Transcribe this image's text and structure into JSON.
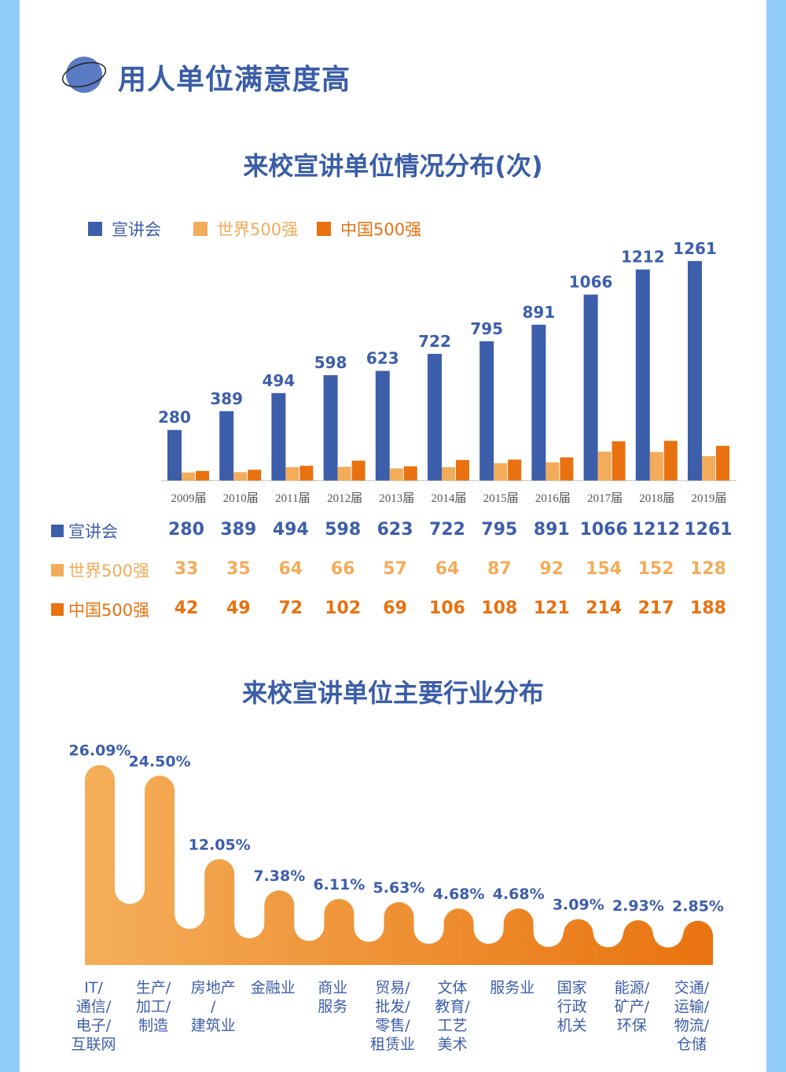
{
  "header": {
    "title": "用人单位满意度高",
    "icon": "planet-icon"
  },
  "colors": {
    "blue": "#3d5eab",
    "light_orange": "#f3ac5a",
    "dark_orange": "#e9710f",
    "title": "#3a5da8"
  },
  "chart_data": [
    {
      "type": "bar",
      "title": "来校宣讲单位情况分布(次)",
      "categories": [
        "2009届",
        "2010届",
        "2011届",
        "2012届",
        "2013届",
        "2014届",
        "2015届",
        "2016届",
        "2017届",
        "2018届",
        "2019届"
      ],
      "series": [
        {
          "name": "宣讲会",
          "values": [
            280,
            389,
            494,
            598,
            623,
            722,
            795,
            891,
            1066,
            1212,
            1261
          ]
        },
        {
          "name": "世界500强",
          "values": [
            33,
            35,
            64,
            66,
            57,
            64,
            87,
            92,
            154,
            152,
            128
          ]
        },
        {
          "name": "中国500强",
          "values": [
            42,
            49,
            72,
            102,
            69,
            106,
            108,
            121,
            214,
            217,
            188
          ]
        }
      ],
      "legend": "top-left",
      "grid": false
    },
    {
      "type": "bar",
      "title": "来校宣讲单位主要行业分布",
      "categories": [
        [
          "IT/",
          "通信/",
          "电子/",
          "互联网"
        ],
        [
          "生产/",
          "加工/",
          "制造"
        ],
        [
          "房地产",
          "/",
          "建筑业"
        ],
        [
          "金融业"
        ],
        [
          "商业",
          "服务"
        ],
        [
          "贸易/",
          "批发/",
          "零售/",
          "租赁业"
        ],
        [
          "文体",
          "教育/",
          "工艺",
          "美术"
        ],
        [
          "服务业"
        ],
        [
          "国家",
          "行政",
          "机关"
        ],
        [
          "能源/",
          "矿产/",
          "环保"
        ],
        [
          "交通/",
          "运输/",
          "物流/",
          "仓储"
        ]
      ],
      "values": [
        26.09,
        24.5,
        12.05,
        7.38,
        6.11,
        5.63,
        4.68,
        4.68,
        3.09,
        2.93,
        2.85
      ],
      "labels": [
        "26.09%",
        "24.50%",
        "12.05%",
        "7.38%",
        "6.11%",
        "5.63%",
        "4.68%",
        "4.68%",
        "3.09%",
        "2.93%",
        "2.85%"
      ]
    }
  ]
}
